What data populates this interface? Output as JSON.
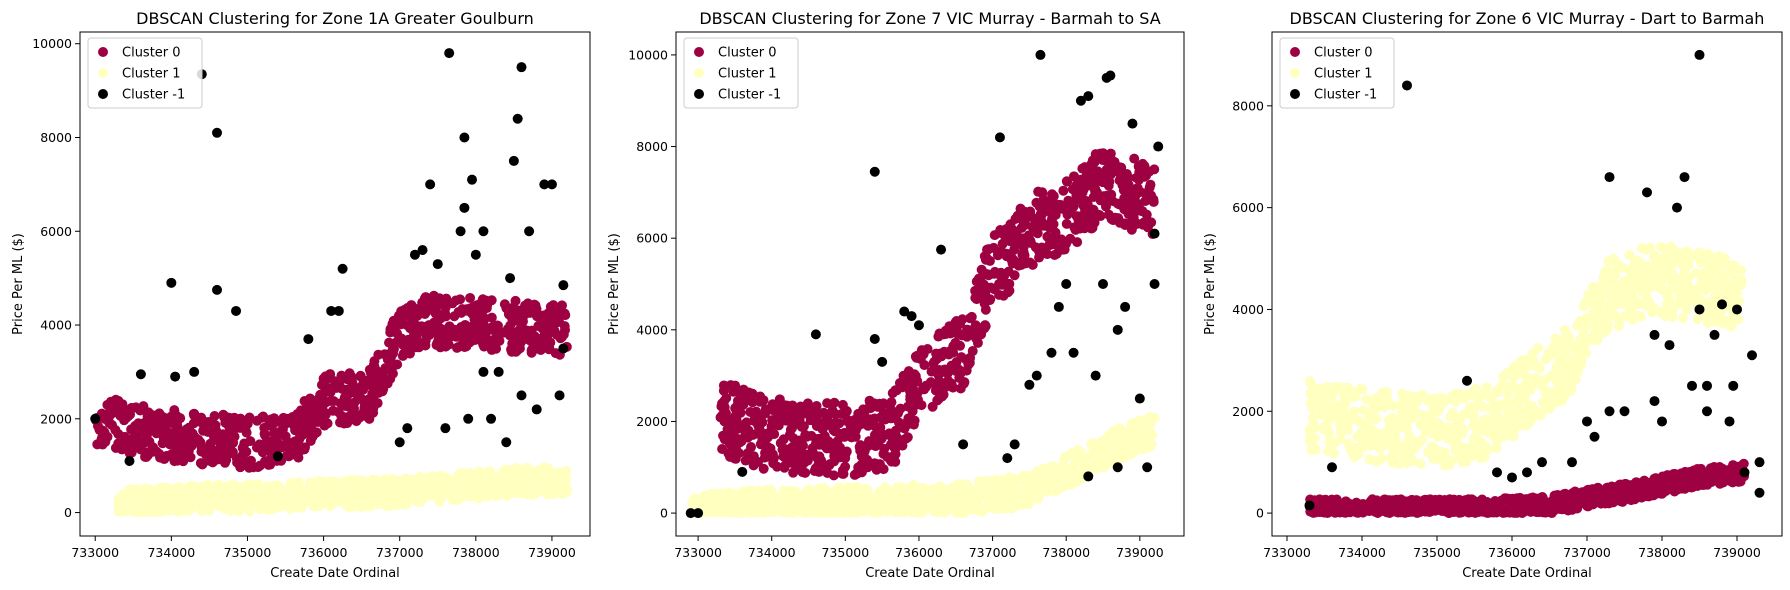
{
  "chart_data": [
    {
      "type": "scatter",
      "title": "DBSCAN Clustering for Zone 1A Greater Goulburn",
      "xlabel": "Create Date Ordinal",
      "ylabel": "Price Per ML ($)",
      "xlim": [
        732800,
        739500
      ],
      "ylim": [
        -500,
        10250
      ],
      "xticks": [
        733000,
        734000,
        735000,
        736000,
        737000,
        738000,
        739000
      ],
      "yticks": [
        0,
        2000,
        4000,
        6000,
        8000,
        10000
      ],
      "legend": "upper-left",
      "series": [
        {
          "name": "Cluster 0",
          "color": "#9e0142",
          "x_range": [
            733000,
            739200
          ],
          "steps": [
            [
              733000,
              2000
            ],
            [
              733400,
              1800
            ],
            [
              734200,
              1600
            ],
            [
              735000,
              1500
            ],
            [
              735600,
              1550
            ],
            [
              736000,
              2400
            ],
            [
              736600,
              2500
            ],
            [
              737000,
              3800
            ],
            [
              737300,
              4100
            ],
            [
              738200,
              4000
            ],
            [
              739200,
              3900
            ]
          ],
          "spread": 1100
        },
        {
          "name": "Cluster 1",
          "color": "#ffffbf",
          "x_range": [
            733300,
            739200
          ],
          "steps": [
            [
              733300,
              200
            ],
            [
              734500,
              300
            ],
            [
              735500,
              350
            ],
            [
              736500,
              400
            ],
            [
              737500,
              500
            ],
            [
              738500,
              650
            ],
            [
              739200,
              700
            ]
          ],
          "spread": 600
        },
        {
          "name": "Cluster -1",
          "color": "#000000",
          "points": [
            [
              733000,
              2000
            ],
            [
              733450,
              1100
            ],
            [
              733600,
              2950
            ],
            [
              734000,
              4900
            ],
            [
              734050,
              2900
            ],
            [
              734300,
              3000
            ],
            [
              734400,
              9350
            ],
            [
              734600,
              8100
            ],
            [
              734600,
              4750
            ],
            [
              734850,
              4300
            ],
            [
              735400,
              1200
            ],
            [
              735800,
              3700
            ],
            [
              736100,
              4300
            ],
            [
              736200,
              4300
            ],
            [
              736250,
              5200
            ],
            [
              737000,
              1500
            ],
            [
              737100,
              1800
            ],
            [
              737200,
              5500
            ],
            [
              737300,
              5600
            ],
            [
              737400,
              7000
            ],
            [
              737500,
              5300
            ],
            [
              737650,
              9800
            ],
            [
              737800,
              6000
            ],
            [
              737850,
              6500
            ],
            [
              737850,
              8000
            ],
            [
              737950,
              7100
            ],
            [
              738000,
              5500
            ],
            [
              738100,
              6000
            ],
            [
              738300,
              3000
            ],
            [
              738450,
              5000
            ],
            [
              738500,
              7500
            ],
            [
              738550,
              8400
            ],
            [
              738600,
              9500
            ],
            [
              738700,
              6000
            ],
            [
              738800,
              2200
            ],
            [
              738900,
              7000
            ],
            [
              739000,
              7000
            ],
            [
              739100,
              2500
            ],
            [
              739150,
              4850
            ],
            [
              739150,
              3500
            ],
            [
              738200,
              2000
            ],
            [
              738600,
              2500
            ],
            [
              738400,
              1500
            ],
            [
              737600,
              1800
            ],
            [
              737900,
              2000
            ],
            [
              738100,
              3000
            ]
          ]
        }
      ]
    },
    {
      "type": "scatter",
      "title": "DBSCAN Clustering for Zone 7 VIC Murray - Barmah to SA",
      "xlabel": "Create Date Ordinal",
      "ylabel": "Price Per ML ($)",
      "xlim": [
        732700,
        739600
      ],
      "ylim": [
        -500,
        10500
      ],
      "xticks": [
        733000,
        734000,
        735000,
        736000,
        737000,
        738000,
        739000
      ],
      "yticks": [
        0,
        2000,
        4000,
        6000,
        8000,
        10000
      ],
      "legend": "upper-left",
      "series": [
        {
          "name": "Cluster 0",
          "color": "#9e0142",
          "x_range": [
            733300,
            739200
          ],
          "steps": [
            [
              733300,
              2100
            ],
            [
              734000,
              1700
            ],
            [
              735000,
              1600
            ],
            [
              735600,
              1700
            ],
            [
              736000,
              2800
            ],
            [
              736600,
              3500
            ],
            [
              737000,
              5300
            ],
            [
              737600,
              6200
            ],
            [
              738100,
              6600
            ],
            [
              738500,
              7200
            ],
            [
              739200,
              6800
            ]
          ],
          "spread": 1600
        },
        {
          "name": "Cluster 1",
          "color": "#ffffbf",
          "x_range": [
            732900,
            739200
          ],
          "steps": [
            [
              732900,
              0
            ],
            [
              733500,
              150
            ],
            [
              734500,
              200
            ],
            [
              735500,
              250
            ],
            [
              736500,
              300
            ],
            [
              737500,
              500
            ],
            [
              738000,
              900
            ],
            [
              738700,
              1500
            ],
            [
              739200,
              1800
            ]
          ],
          "spread": 700
        },
        {
          "name": "Cluster -1",
          "color": "#000000",
          "points": [
            [
              732900,
              0
            ],
            [
              733000,
              0
            ],
            [
              733600,
              900
            ],
            [
              734600,
              3900
            ],
            [
              735400,
              7450
            ],
            [
              735400,
              3800
            ],
            [
              735500,
              3300
            ],
            [
              735800,
              4400
            ],
            [
              735900,
              4300
            ],
            [
              736000,
              4100
            ],
            [
              736300,
              5750
            ],
            [
              736600,
              1500
            ],
            [
              737100,
              8200
            ],
            [
              737200,
              1200
            ],
            [
              737300,
              1500
            ],
            [
              737600,
              3000
            ],
            [
              737650,
              10000
            ],
            [
              737800,
              3500
            ],
            [
              737900,
              4500
            ],
            [
              738000,
              5000
            ],
            [
              738200,
              9000
            ],
            [
              738300,
              9100
            ],
            [
              738400,
              3000
            ],
            [
              738500,
              5000
            ],
            [
              738550,
              9500
            ],
            [
              738600,
              9550
            ],
            [
              738700,
              4000
            ],
            [
              738800,
              4500
            ],
            [
              738900,
              8500
            ],
            [
              739000,
              2500
            ],
            [
              739100,
              1000
            ],
            [
              739200,
              6100
            ],
            [
              739250,
              8000
            ],
            [
              739200,
              5000
            ],
            [
              738300,
              800
            ],
            [
              738700,
              1000
            ],
            [
              737500,
              2800
            ],
            [
              738100,
              3500
            ]
          ]
        }
      ]
    },
    {
      "type": "scatter",
      "title": "DBSCAN Clustering for Zone 6 VIC Murray - Dart to Barmah",
      "xlabel": "Create Date Ordinal",
      "ylabel": "Price Per ML ($)",
      "xlim": [
        732800,
        739600
      ],
      "ylim": [
        -450,
        9450
      ],
      "xticks": [
        733000,
        734000,
        735000,
        736000,
        737000,
        738000,
        739000
      ],
      "yticks": [
        0,
        2000,
        4000,
        6000,
        8000
      ],
      "legend": "upper-left",
      "series": [
        {
          "name": "Cluster 0",
          "color": "#9e0142",
          "x_range": [
            733300,
            739100
          ],
          "steps": [
            [
              733300,
              100
            ],
            [
              734500,
              100
            ],
            [
              735500,
              100
            ],
            [
              736500,
              150
            ],
            [
              737000,
              300
            ],
            [
              737500,
              400
            ],
            [
              738000,
              550
            ],
            [
              738500,
              700
            ],
            [
              739100,
              800
            ]
          ],
          "spread": 350
        },
        {
          "name": "Cluster 1",
          "color": "#ffffbf",
          "x_range": [
            733300,
            739100
          ],
          "steps": [
            [
              733300,
              1900
            ],
            [
              734200,
              1700
            ],
            [
              735000,
              1600
            ],
            [
              735700,
              1800
            ],
            [
              736200,
              2400
            ],
            [
              736800,
              3000
            ],
            [
              737200,
              4200
            ],
            [
              737800,
              4600
            ],
            [
              738300,
              4500
            ],
            [
              739100,
              4300
            ]
          ],
          "spread": 1400
        },
        {
          "name": "Cluster -1",
          "color": "#000000",
          "points": [
            [
              733300,
              150
            ],
            [
              733600,
              900
            ],
            [
              734600,
              8400
            ],
            [
              735400,
              2600
            ],
            [
              735800,
              800
            ],
            [
              736000,
              700
            ],
            [
              736200,
              800
            ],
            [
              736400,
              1000
            ],
            [
              736800,
              1000
            ],
            [
              737000,
              1800
            ],
            [
              737100,
              1500
            ],
            [
              737300,
              6600
            ],
            [
              737300,
              2000
            ],
            [
              737500,
              2000
            ],
            [
              737800,
              6300
            ],
            [
              737900,
              2200
            ],
            [
              737900,
              3500
            ],
            [
              738000,
              1800
            ],
            [
              738100,
              3300
            ],
            [
              738200,
              6000
            ],
            [
              738300,
              6600
            ],
            [
              738400,
              2500
            ],
            [
              738500,
              4000
            ],
            [
              738500,
              9000
            ],
            [
              738600,
              2000
            ],
            [
              738700,
              3500
            ],
            [
              738800,
              4100
            ],
            [
              738900,
              1800
            ],
            [
              738950,
              2500
            ],
            [
              739000,
              4000
            ],
            [
              739100,
              800
            ],
            [
              739200,
              3100
            ],
            [
              739300,
              1000
            ],
            [
              739300,
              400
            ],
            [
              738600,
              2500
            ]
          ]
        }
      ]
    }
  ]
}
